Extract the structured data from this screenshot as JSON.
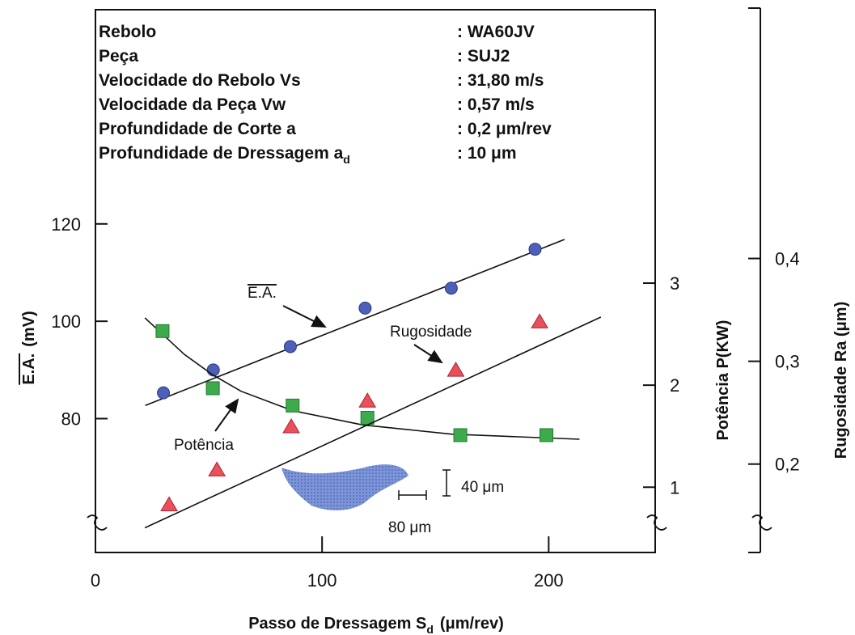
{
  "chart_data": {
    "type": "scatter",
    "info": [
      {
        "label": "Rebolo",
        "value": ": WA60JV"
      },
      {
        "label": "Peça",
        "value": ": SUJ2"
      },
      {
        "label": "Velocidade do Rebolo  Vs",
        "value": ": 31,80 m/s"
      },
      {
        "label": "Velocidade da  Peça  Vw",
        "value": ": 0,57 m/s"
      },
      {
        "label": "Profundidade de  Corte  a",
        "value": ": 0,2 μm/rev"
      },
      {
        "label": "Profundidade de Dressagem a",
        "label_sub": "d",
        "value": ": 10 μm"
      }
    ],
    "xlabel": {
      "main": "Passo de Dressagem S",
      "sub": "d",
      "unit": "(μm/rev)"
    },
    "ylabel": {
      "main": "E.A.",
      "unit": "(mV)"
    },
    "y2label": "Potência  P(KW)",
    "y3label": "Rugosidade  Ra  (μm)",
    "scale_labels": [
      "40 μm",
      "80 μm"
    ],
    "xlim": [
      0,
      247
    ],
    "xticks": [
      0,
      100,
      200
    ],
    "ylim": [
      52.5,
      164
    ],
    "yticks": [
      80,
      100,
      120
    ],
    "y2lim": [
      0.36,
      5.68
    ],
    "y2ticks": [
      1,
      2,
      3
    ],
    "y3lim": [
      0.114,
      0.642
    ],
    "y3ticks": [
      {
        "value": 0.2,
        "label": "0,2"
      },
      {
        "value": 0.3,
        "label": "0,3"
      },
      {
        "value": 0.4,
        "label": "0,4"
      }
    ],
    "series": [
      {
        "name": "E.A.",
        "color": "#4d5fb8",
        "marker": "circle",
        "axis": "y",
        "x": [
          30,
          52,
          86,
          119,
          157,
          194
        ],
        "values": [
          85.3,
          90,
          94.8,
          102.7,
          106.8,
          114.8
        ],
        "fit": {
          "x": [
            22,
            207
          ],
          "values": [
            82.7,
            116.8
          ]
        }
      },
      {
        "name": "Potência",
        "color": "#3daa4c",
        "marker": "square",
        "axis": "y2",
        "x": [
          29.6,
          51.8,
          87,
          120,
          161,
          199
        ],
        "values": [
          2.53,
          1.97,
          1.8,
          1.68,
          1.51,
          1.51
        ],
        "fit": {
          "x": [
            21.8,
            39.3,
            51.8,
            64.3,
            87.1,
            117.9,
            157.1,
            213.6
          ],
          "values": [
            2.66,
            2.3,
            2.1,
            1.94,
            1.75,
            1.61,
            1.52,
            1.47
          ]
        }
      },
      {
        "name": "Rugosidade",
        "color": "#e8515c",
        "marker": "triangle",
        "axis": "y3",
        "x": [
          32.5,
          53.6,
          86.4,
          120,
          159,
          196
        ],
        "values": [
          0.16,
          0.194,
          0.236,
          0.261,
          0.291,
          0.338
        ],
        "fit": {
          "x": [
            21.8,
            223
          ],
          "values": [
            0.138,
            0.343
          ]
        }
      }
    ]
  }
}
